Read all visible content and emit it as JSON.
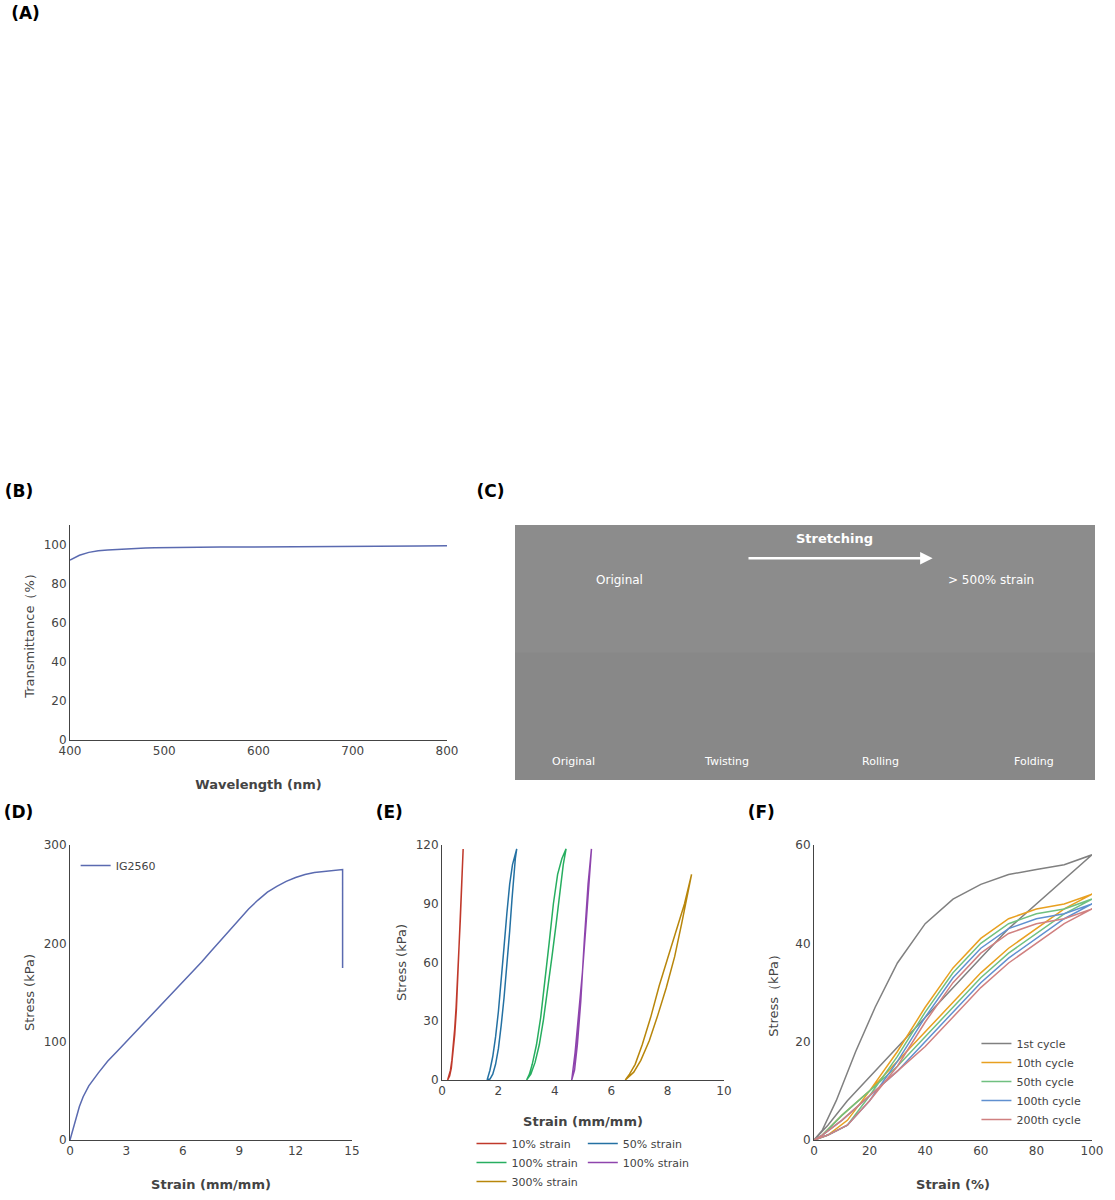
{
  "chart_data": [
    {
      "type": "panel",
      "title": "(A)"
    },
    {
      "type": "line",
      "title": "(B)",
      "xlabel": "Wavelength (nm)",
      "ylabel": "Transmittance（%）",
      "xlim": [
        400,
        800
      ],
      "ylim": [
        0,
        110
      ],
      "xticks": [
        400,
        500,
        600,
        700,
        800
      ],
      "yticks": [
        0,
        20,
        40,
        60,
        80,
        100
      ],
      "grid": false,
      "series": [
        {
          "color": "#5a6ab0",
          "x": [
            400,
            410,
            420,
            430,
            440,
            450,
            460,
            470,
            480,
            490,
            500,
            520,
            540,
            560,
            580,
            600,
            620,
            650,
            680,
            710,
            740,
            770,
            800
          ],
          "values": [
            92,
            94.5,
            96,
            96.8,
            97.2,
            97.5,
            97.8,
            98.0,
            98.2,
            98.3,
            98.4,
            98.5,
            98.6,
            98.7,
            98.7,
            98.8,
            98.8,
            98.9,
            99.0,
            99.1,
            99.2,
            99.3,
            99.4
          ]
        }
      ]
    },
    {
      "type": "panel",
      "title": "(C)",
      "annotations": [
        "Stretching",
        "Original",
        "> 500% strain",
        "Original",
        "Twisting",
        "Rolling",
        "Folding"
      ]
    },
    {
      "type": "line",
      "title": "(D)",
      "xlabel": "Strain (mm/mm)",
      "ylabel": "Stress (kPa)",
      "xlim": [
        0,
        15
      ],
      "ylim": [
        0,
        300
      ],
      "xticks": [
        0,
        3,
        6,
        9,
        12,
        15
      ],
      "yticks": [
        0,
        100,
        200,
        300
      ],
      "grid": false,
      "legend": "upper left",
      "series": [
        {
          "name": "IG2560",
          "color": "#5a6ab0",
          "x": [
            0,
            0.15,
            0.3,
            0.5,
            0.7,
            1.0,
            1.5,
            2.0,
            2.5,
            3.0,
            3.5,
            4.0,
            4.5,
            5.0,
            5.5,
            6.0,
            6.5,
            7.0,
            7.5,
            8.0,
            8.5,
            9.0,
            9.5,
            10.0,
            10.5,
            11.0,
            11.5,
            12.0,
            12.5,
            13.0,
            13.5,
            14.0,
            14.3,
            14.5,
            14.5,
            14.5
          ],
          "values": [
            0,
            10,
            22,
            34,
            44,
            55,
            68,
            80,
            90,
            100,
            110,
            120,
            130,
            140,
            150,
            160,
            170,
            181,
            192,
            203,
            214,
            225,
            235,
            244,
            252,
            258,
            263,
            267,
            270,
            272,
            273,
            274,
            275,
            275,
            275,
            175
          ]
        }
      ]
    },
    {
      "type": "line",
      "title": "(E)",
      "xlabel": "Strain (mm/mm)",
      "ylabel": "Stress (kPa)",
      "xlim": [
        0,
        10
      ],
      "ylim": [
        0,
        120
      ],
      "xticks": [
        0,
        2,
        4,
        6,
        8,
        10
      ],
      "yticks": [
        0,
        30,
        60,
        90,
        120
      ],
      "grid": false,
      "legend": "bottom",
      "series": [
        {
          "name": "10% strain",
          "color": "#c0392b",
          "x": [
            0.2,
            0.25,
            0.3,
            0.35,
            0.4,
            0.45,
            0.5,
            0.55,
            0.6,
            0.65,
            0.7,
            0.75,
            0.75,
            0.72,
            0.68,
            0.63,
            0.57,
            0.51,
            0.45,
            0.39,
            0.33,
            0.27,
            0.22,
            0.2
          ],
          "values": [
            0,
            2,
            5,
            10,
            17,
            26,
            37,
            50,
            65,
            82,
            100,
            118,
            118,
            105,
            88,
            70,
            52,
            36,
            23,
            13,
            6,
            2,
            0.5,
            0
          ]
        },
        {
          "name": "50% strain",
          "color": "#2471a3",
          "x": [
            1.6,
            1.65,
            1.7,
            1.8,
            1.9,
            2.0,
            2.1,
            2.2,
            2.3,
            2.4,
            2.5,
            2.6,
            2.65,
            2.65,
            2.6,
            2.55,
            2.48,
            2.4,
            2.3,
            2.2,
            2.1,
            2.0,
            1.9,
            1.8,
            1.7,
            1.6
          ],
          "values": [
            0,
            2,
            5,
            12,
            22,
            35,
            50,
            68,
            85,
            100,
            110,
            116,
            118,
            118,
            113,
            105,
            92,
            76,
            58,
            42,
            28,
            16,
            8,
            3,
            0.5,
            0
          ]
        },
        {
          "name": "100% strain",
          "color": "#27ae60",
          "x": [
            3.0,
            3.1,
            3.2,
            3.35,
            3.5,
            3.65,
            3.8,
            3.95,
            4.1,
            4.25,
            4.4,
            4.4,
            4.3,
            4.2,
            4.05,
            3.9,
            3.75,
            3.6,
            3.45,
            3.3,
            3.15,
            3.0
          ],
          "values": [
            0,
            3,
            8,
            18,
            32,
            50,
            70,
            90,
            105,
            113,
            118,
            118,
            110,
            97,
            80,
            63,
            46,
            31,
            18,
            9,
            3,
            0
          ]
        },
        {
          "name": "100% strain",
          "color": "#8e44ad",
          "x": [
            4.6,
            4.7,
            4.8,
            4.92,
            5.05,
            5.18,
            5.3,
            5.3,
            5.2,
            5.1,
            4.98,
            4.85,
            4.72,
            4.6
          ],
          "values": [
            0,
            5,
            18,
            40,
            72,
            100,
            118,
            118,
            100,
            78,
            55,
            33,
            14,
            0
          ]
        },
        {
          "name": "300% strain",
          "color": "#b8860b",
          "x": [
            6.5,
            6.65,
            6.85,
            7.1,
            7.4,
            7.7,
            8.0,
            8.3,
            8.6,
            8.85,
            8.85,
            8.7,
            8.5,
            8.25,
            7.95,
            7.65,
            7.35,
            7.05,
            6.8,
            6.5
          ],
          "values": [
            0,
            3,
            8,
            18,
            32,
            48,
            62,
            76,
            90,
            105,
            105,
            94,
            80,
            63,
            47,
            33,
            20,
            10,
            4,
            0
          ]
        }
      ]
    },
    {
      "type": "line",
      "title": "(F)",
      "xlabel": "Strain (%)",
      "ylabel": "Stress（kPa）",
      "xlim": [
        0,
        100
      ],
      "ylim": [
        0,
        60
      ],
      "xticks": [
        0,
        20,
        40,
        60,
        80,
        100
      ],
      "yticks": [
        0,
        20,
        40,
        60
      ],
      "grid": false,
      "legend": "lower right",
      "series": [
        {
          "name": "1st cycle",
          "color": "#808080",
          "x": [
            0,
            3,
            8,
            15,
            22,
            30,
            40,
            50,
            60,
            70,
            80,
            90,
            100,
            100,
            90,
            80,
            70,
            60,
            50,
            40,
            30,
            20,
            12,
            5,
            0
          ],
          "values": [
            0,
            2,
            8,
            18,
            27,
            36,
            44,
            49,
            52,
            54,
            55,
            56,
            58,
            58,
            53,
            48,
            43,
            37,
            31,
            25,
            19,
            13,
            8,
            3,
            0
          ]
        },
        {
          "name": "10th cycle",
          "color": "#e8a020",
          "x": [
            0,
            5,
            12,
            20,
            30,
            40,
            50,
            60,
            70,
            80,
            90,
            100,
            100,
            90,
            80,
            70,
            60,
            50,
            40,
            30,
            20,
            10,
            3,
            0
          ],
          "values": [
            0,
            1,
            4,
            10,
            18,
            27,
            35,
            41,
            45,
            47,
            48,
            50,
            50,
            47,
            43,
            39,
            34,
            28,
            22,
            16,
            10,
            5,
            1,
            0
          ]
        },
        {
          "name": "50th cycle",
          "color": "#70c080",
          "x": [
            0,
            5,
            12,
            20,
            30,
            40,
            50,
            60,
            70,
            80,
            90,
            100,
            100,
            90,
            80,
            70,
            60,
            50,
            40,
            30,
            20,
            10,
            3,
            0
          ],
          "values": [
            0,
            1,
            3,
            9,
            17,
            26,
            34,
            40,
            44,
            46,
            47,
            49,
            49,
            46,
            42,
            38,
            33,
            27,
            21,
            15,
            10,
            5,
            1,
            0
          ]
        },
        {
          "name": "100th cycle",
          "color": "#6090d0",
          "x": [
            0,
            5,
            12,
            20,
            30,
            40,
            50,
            60,
            70,
            80,
            90,
            100,
            100,
            90,
            80,
            70,
            60,
            50,
            40,
            30,
            20,
            10,
            3,
            0
          ],
          "values": [
            0,
            1,
            3,
            8,
            16,
            25,
            33,
            39,
            43,
            45,
            46,
            48,
            48,
            45,
            41,
            37,
            32,
            26,
            20,
            14,
            9,
            4,
            1,
            0
          ]
        },
        {
          "name": "200th cycle",
          "color": "#d08080",
          "x": [
            0,
            5,
            12,
            20,
            30,
            40,
            50,
            60,
            70,
            80,
            90,
            100,
            100,
            90,
            80,
            70,
            60,
            50,
            40,
            30,
            20,
            10,
            3,
            0
          ],
          "values": [
            0,
            1,
            3,
            8,
            15,
            24,
            32,
            38,
            42,
            44,
            45,
            47,
            47,
            44,
            40,
            36,
            31,
            25,
            19,
            14,
            9,
            4,
            1,
            0
          ]
        }
      ]
    }
  ]
}
